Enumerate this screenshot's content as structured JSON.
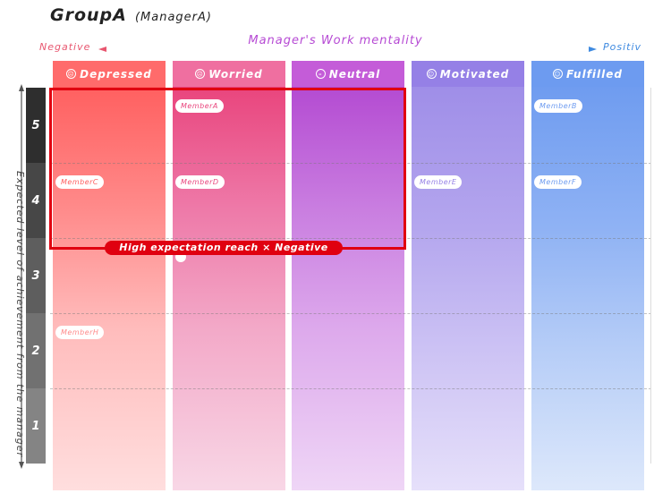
{
  "title": {
    "group": "GroupA",
    "manager": "(ManagerA)"
  },
  "x_axis": {
    "label": "Manager's Work mentality",
    "negative": "Negative",
    "positive": "Positiv"
  },
  "y_axis": {
    "label": "Expected level of achievement from the manager",
    "levels": [
      "5",
      "4",
      "3",
      "2",
      "1"
    ]
  },
  "columns": [
    {
      "label": "Depressed",
      "icon": "depressed-face-icon"
    },
    {
      "label": "Worried",
      "icon": "worried-face-icon"
    },
    {
      "label": "Neutral",
      "icon": "neutral-face-icon"
    },
    {
      "label": "Motivated",
      "icon": "motivated-face-icon"
    },
    {
      "label": "Fulfilled",
      "icon": "fulfilled-face-icon"
    }
  ],
  "members": [
    {
      "name": "MemberA",
      "mentality": "Worried",
      "level": 5
    },
    {
      "name": "MemberB",
      "mentality": "Fulfilled",
      "level": 5
    },
    {
      "name": "MemberC",
      "mentality": "Depressed",
      "level": 4
    },
    {
      "name": "MemberD",
      "mentality": "Worried",
      "level": 4
    },
    {
      "name": "MemberE",
      "mentality": "Motivated",
      "level": 4
    },
    {
      "name": "MemberF",
      "mentality": "Fulfilled",
      "level": 4
    },
    {
      "name": "MemberH",
      "mentality": "Depressed",
      "level": 2
    }
  ],
  "highlight": {
    "label": "High expectation reach × Negative"
  },
  "colors": {
    "negative": "#e8566f",
    "positive": "#3f8ae0",
    "mentality": "#b64ad4",
    "highlight": "#e00010",
    "depressed": "#ff6b6b",
    "worried": "#ef6fa0",
    "neutral": "#c45cd8",
    "motivated": "#9b86e8",
    "fulfilled": "#6d9bf0"
  }
}
